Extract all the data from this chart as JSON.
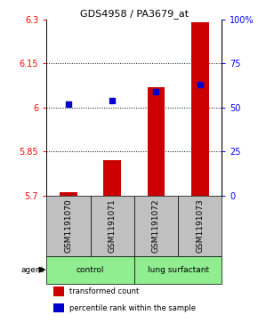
{
  "title": "GDS4958 / PA3679_at",
  "samples": [
    "GSM1191070",
    "GSM1191071",
    "GSM1191072",
    "GSM1191073"
  ],
  "red_values": [
    5.71,
    5.82,
    6.07,
    6.29
  ],
  "blue_percentiles": [
    52,
    54,
    59,
    63
  ],
  "ylim_left": [
    5.7,
    6.3
  ],
  "ylim_right": [
    0,
    100
  ],
  "yticks_left": [
    5.7,
    5.85,
    6.0,
    6.15,
    6.3
  ],
  "yticks_right": [
    0,
    25,
    50,
    75,
    100
  ],
  "ytick_labels_left": [
    "5.7",
    "5.85",
    "6",
    "6.15",
    "6.3"
  ],
  "ytick_labels_right": [
    "0",
    "25",
    "50",
    "75",
    "100%"
  ],
  "hlines": [
    5.85,
    6.0,
    6.15
  ],
  "groups": [
    {
      "label": "control",
      "samples": [
        0,
        1
      ],
      "color": "#90EE90"
    },
    {
      "label": "lung surfactant",
      "samples": [
        2,
        3
      ],
      "color": "#90EE90"
    }
  ],
  "group_label": "agent",
  "bar_width": 0.4,
  "bar_color_red": "#CC0000",
  "bar_color_blue": "#0000CC",
  "marker_size": 5,
  "sample_box_color": "#C0C0C0",
  "legend_red": "transformed count",
  "legend_blue": "percentile rank within the sample",
  "title_fontsize": 8,
  "axis_fontsize": 7,
  "label_fontsize": 6.5,
  "legend_fontsize": 6
}
